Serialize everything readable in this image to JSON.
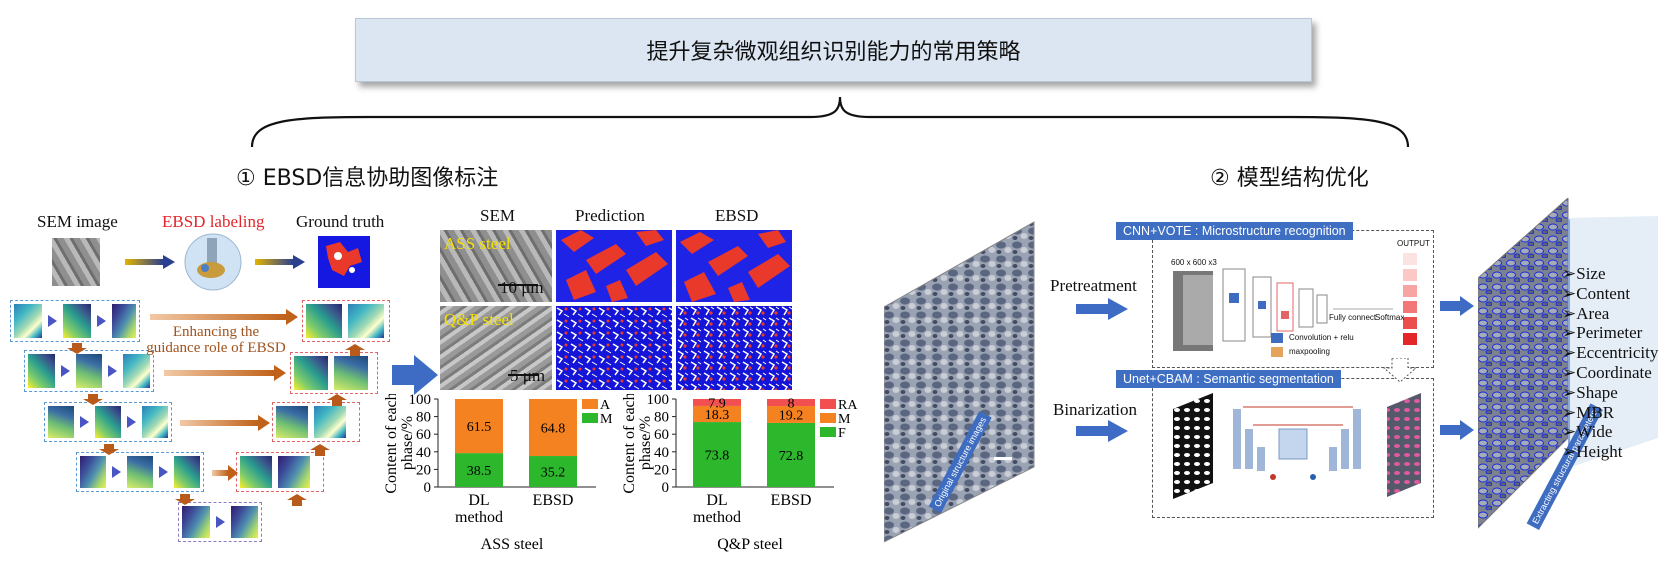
{
  "title": "提升复杂微观组织识别能力的常用策略",
  "section1": {
    "title": "① EBSD信息协助图像标注",
    "sem_image_label": "SEM image",
    "ebsd_labeling_label": "EBSD labeling",
    "ground_truth_label": "Ground truth",
    "guidance_text": "Enhancing the guidance role of EBSD",
    "col_headers": [
      "SEM",
      "Prediction",
      "EBSD"
    ],
    "row_labels": [
      "ASS steel",
      "Q&P steel"
    ],
    "scale_bars": [
      "10 μm",
      "5 μm"
    ],
    "colors": {
      "ebsd_red": "#e8392a",
      "a_orange": "#f58220",
      "m_green": "#2db72d",
      "ra_red": "#f25050",
      "pred_blue": "#1f23e6"
    }
  },
  "section2": {
    "title": "② 模型结构优化",
    "pretreatment_label": "Pretreatment",
    "binarization_label": "Binarization",
    "cnn_box_title": "CNN+VOTE : Microstructure recognition",
    "unet_box_title": "Unet+CBAM : Semantic segmentation",
    "original_images_label": "Original structure images",
    "extracting_label": "Extracting structural parameters",
    "cnn_details": {
      "input": "600 x 600 x3",
      "output": "OUTPUT",
      "conv": "Convolution + relu",
      "pool": "maxpooling",
      "fc": "Fully connect",
      "softmax": "Softmax"
    },
    "parameters": [
      "Size",
      "Content",
      "Area",
      "Perimeter",
      "Eccentricity",
      "Coordinate",
      "Shape",
      "MBR",
      "Wide",
      "Height"
    ]
  },
  "chart_data": [
    {
      "type": "bar",
      "stacked": true,
      "title": "ASS steel",
      "ylabel": "Content of each phase/%",
      "categories": [
        "DL method",
        "EBSD"
      ],
      "series": [
        {
          "name": "M",
          "color": "#2db72d",
          "values": [
            38.5,
            35.2
          ]
        },
        {
          "name": "A",
          "color": "#f58220",
          "values": [
            61.5,
            64.8
          ]
        }
      ],
      "ylim": [
        0,
        100
      ],
      "yticks": [
        0,
        20,
        40,
        60,
        80,
        100
      ],
      "legend": "top-right"
    },
    {
      "type": "bar",
      "stacked": true,
      "title": "Q&P steel",
      "ylabel": "Content of each phase/%",
      "categories": [
        "DL method",
        "EBSD"
      ],
      "series": [
        {
          "name": "F",
          "color": "#2db72d",
          "values": [
            73.8,
            72.8
          ]
        },
        {
          "name": "M",
          "color": "#f58220",
          "values": [
            18.3,
            19.2
          ]
        },
        {
          "name": "RA",
          "color": "#f25050",
          "values": [
            7.9,
            8.0
          ]
        }
      ],
      "ylim": [
        0,
        100
      ],
      "yticks": [
        0,
        20,
        40,
        60,
        80,
        100
      ],
      "legend": "top-right"
    }
  ]
}
